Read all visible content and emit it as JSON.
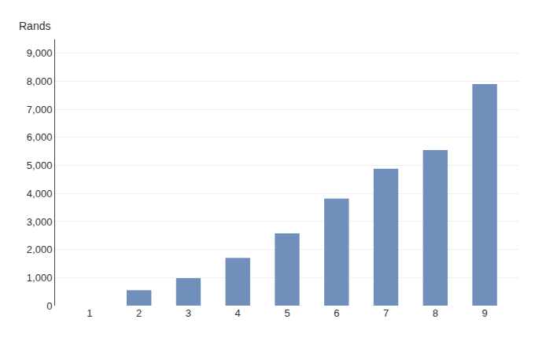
{
  "chart_data": {
    "type": "bar",
    "ylabel": "Rands",
    "categories": [
      1,
      2,
      3,
      4,
      5,
      6,
      7,
      8,
      9
    ],
    "values": [
      0,
      550,
      980,
      1700,
      2580,
      3820,
      4880,
      5550,
      7900
    ],
    "color": "#7090bb",
    "ylim": [
      0,
      9500
    ],
    "yticks": [
      0,
      {
        "value": 1000,
        "label": "1,000"
      },
      {
        "value": 2000,
        "label": "2,000"
      },
      {
        "value": 3000,
        "label": "3,000"
      },
      {
        "value": 4000,
        "label": "4,000"
      },
      {
        "value": 5000,
        "label": "5,000"
      },
      {
        "value": 6000,
        "label": "6,000"
      },
      {
        "value": 7000,
        "label": "7,000"
      },
      {
        "value": 8000,
        "label": "8,000"
      },
      {
        "value": 9000,
        "label": "9,000"
      }
    ],
    "grid": true
  }
}
